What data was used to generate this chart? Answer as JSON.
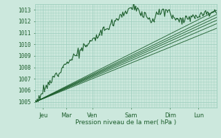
{
  "title": "",
  "xlabel": "Pression niveau de la mer( hPa )",
  "bg_color": "#cce8dd",
  "grid_color": "#99ccbb",
  "line_color": "#1a5c2a",
  "tick_color": "#1a5c2a",
  "ylim": [
    1004.5,
    1013.5
  ],
  "xlim": [
    0,
    7.0
  ],
  "yticks": [
    1005,
    1006,
    1007,
    1008,
    1009,
    1010,
    1011,
    1012,
    1013
  ],
  "xtick_labels": [
    "Jeu",
    "Mar",
    "Ven",
    "Sam",
    "Dim",
    "Lun"
  ],
  "xtick_positions": [
    0.3,
    1.2,
    2.2,
    3.7,
    5.2,
    6.3
  ]
}
